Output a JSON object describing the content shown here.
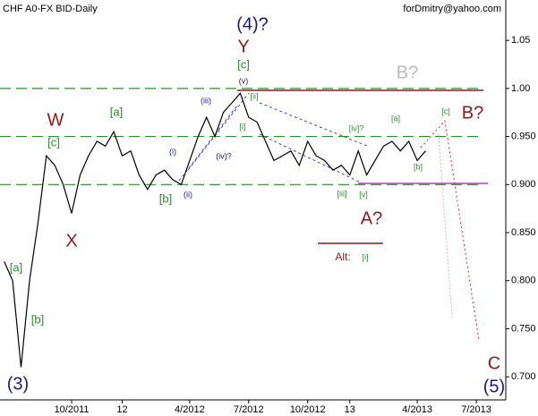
{
  "chart_data": {
    "type": "line",
    "title": "CHF A0-FX BID-Daily",
    "credit": "forDmitry@yahoo.com",
    "categories": [
      null,
      null,
      null,
      null,
      null,
      null,
      null,
      null,
      "10/2011",
      null,
      null,
      null,
      null,
      null,
      "12",
      null,
      null,
      null,
      null,
      null,
      null,
      null,
      "4/2012",
      null,
      null,
      null,
      null,
      null,
      null,
      "7/2012",
      null,
      null,
      null,
      null,
      null,
      null,
      "10/2012",
      null,
      null,
      null,
      null,
      "13",
      null,
      null,
      null,
      null,
      null,
      null,
      null,
      "4/2013",
      null,
      null,
      null,
      null,
      null,
      null,
      "7/2013",
      null,
      null,
      null
    ],
    "values": [
      0.82,
      0.8,
      0.71,
      0.8,
      0.86,
      0.93,
      0.92,
      0.9,
      0.87,
      0.91,
      0.93,
      0.945,
      0.94,
      0.955,
      0.93,
      0.935,
      0.91,
      0.895,
      0.91,
      0.915,
      0.905,
      0.9,
      0.925,
      0.95,
      0.97,
      0.95,
      0.975,
      0.985,
      0.995,
      0.97,
      0.965,
      0.945,
      0.925,
      0.93,
      0.935,
      0.92,
      0.945,
      0.93,
      0.925,
      0.915,
      0.92,
      0.91,
      0.935,
      0.91,
      0.925,
      0.94,
      0.945,
      0.935,
      0.945,
      0.925,
      0.935,
      null,
      null,
      null,
      null,
      null,
      null,
      null,
      null,
      null
    ],
    "color": "#000000",
    "ylim": [
      0.676,
      1.092
    ],
    "yticks": [
      {
        "value": 0.7,
        "label": "0.700"
      },
      {
        "value": 0.75,
        "label": "0.750"
      },
      {
        "value": 0.8,
        "label": "0.800"
      },
      {
        "value": 0.85,
        "label": "0.850"
      },
      {
        "value": 0.9,
        "label": "0.900"
      },
      {
        "value": 0.95,
        "label": "0.950"
      },
      {
        "value": 1.0,
        "label": "1.00"
      },
      {
        "value": 1.05,
        "label": "1.05"
      }
    ],
    "levels": [
      1.0,
      0.95,
      0.9
    ],
    "level_color": "#2e8b2e",
    "annotations": [
      {
        "text": "(4)?",
        "color": "#1a1a7a"
      },
      {
        "text": "Y",
        "color": "#8b1a1a"
      },
      {
        "text": "[c]",
        "color": "#2e8b2e"
      },
      {
        "text": "(v)",
        "color": "#1a1a7a"
      },
      {
        "text": "W",
        "color": "#8b1a1a"
      },
      {
        "text": "[c]",
        "color": "#2e8b2e"
      },
      {
        "text": "[a]",
        "color": "#2e8b2e"
      },
      {
        "text": "X",
        "color": "#8b1a1a"
      },
      {
        "text": "[a]",
        "color": "#2e8b2e"
      },
      {
        "text": "[b]",
        "color": "#2e8b2e"
      },
      {
        "text": "(3)",
        "color": "#1a1a7a"
      },
      {
        "text": "(iii)",
        "color": "#1a1a7a"
      },
      {
        "text": "(i)",
        "color": "#1a1a7a"
      },
      {
        "text": "(ii)",
        "color": "#1a1a7a"
      },
      {
        "text": "(iv)?",
        "color": "#1a1a7a"
      },
      {
        "text": "[b]",
        "color": "#2e8b2e"
      },
      {
        "text": "[ii]",
        "color": "#2e8b2e"
      },
      {
        "text": "[i]",
        "color": "#2e8b2e"
      },
      {
        "text": "[iv]?",
        "color": "#2e8b2e"
      },
      {
        "text": "[a]",
        "color": "#2e8b2e"
      },
      {
        "text": "[iii]",
        "color": "#2e8b2e"
      },
      {
        "text": "[v]",
        "color": "#2e8b2e"
      },
      {
        "text": "[b]",
        "color": "#2e8b2e"
      },
      {
        "text": "[c]",
        "color": "#2e8b2e"
      },
      {
        "text": "B?",
        "color": "#8b1a1a"
      },
      {
        "text": "B?",
        "color": "#bbbbbb"
      },
      {
        "text": "A?",
        "color": "#8b1a1a"
      },
      {
        "text": "Alt:",
        "color": "#8b1a1a"
      },
      {
        "text": "[i]",
        "color": "#2e8b2e"
      },
      {
        "text": "C",
        "color": "#8b1a1a"
      },
      {
        "text": "(5)",
        "color": "#1a1a7a"
      }
    ]
  }
}
